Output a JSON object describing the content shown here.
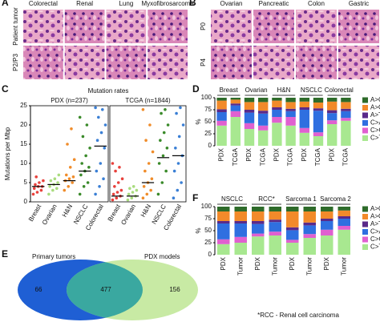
{
  "panel_a": {
    "label": "A",
    "columns": [
      "Colorectal",
      "Renal",
      "Lung",
      "Myxofibrosarcoma"
    ],
    "rows": [
      "Patient tumor",
      "P2/P3"
    ]
  },
  "panel_b": {
    "label": "B",
    "columns": [
      "Ovarian",
      "Pancreatic",
      "Colon",
      "Gastric"
    ],
    "rows": [
      "P0",
      "P4"
    ]
  },
  "chart_data": [
    {
      "type": "strip",
      "panel": "C",
      "title": "Mutation rates",
      "y_label": "Mutations per Mbp",
      "ylim": [
        0,
        25
      ],
      "yticks": [
        0,
        5,
        10,
        15,
        20,
        25
      ],
      "panels": [
        {
          "label": "PDX (n=237)",
          "series": [
            {
              "name": "Breast",
              "color": "#e8413c",
              "median": 4,
              "values": [
                2,
                2.5,
                3,
                3.5,
                4,
                4,
                4.5,
                5,
                5.5,
                6.5
              ]
            },
            {
              "name": "Ovarian",
              "color": "#a9dc7e",
              "median": 4.5,
              "values": [
                2,
                3,
                3.5,
                4,
                4.5,
                5,
                5.5,
                6,
                7
              ]
            },
            {
              "name": "H&N",
              "color": "#f08c2a",
              "median": 5.5,
              "values": [
                3,
                4,
                5,
                5.5,
                6,
                6.5,
                7,
                9,
                11,
                15,
                19
              ]
            },
            {
              "name": "NSCLC",
              "color": "#3a8a2a",
              "median": 8,
              "values": [
                2,
                4,
                5,
                7,
                8,
                9,
                10,
                12,
                14,
                17,
                20,
                22
              ]
            },
            {
              "name": "Colorectal",
              "color": "#3a7fd5",
              "median": 14.5,
              "values": [
                2,
                4,
                6,
                8,
                10,
                14,
                16,
                18,
                20,
                22,
                24,
                24.5
              ]
            }
          ]
        },
        {
          "label": "TCGA (n=1844)",
          "series": [
            {
              "name": "Breast",
              "color": "#e8413c",
              "median": 1.5,
              "values": [
                0.5,
                1,
                1.5,
                2,
                2.5,
                3,
                4,
                5,
                6,
                8,
                9,
                10
              ]
            },
            {
              "name": "Ovarian",
              "color": "#a9dc7e",
              "median": 1.5,
              "values": [
                0.5,
                1,
                1.5,
                2,
                2.5,
                3,
                3.5,
                4
              ]
            },
            {
              "name": "H&N",
              "color": "#f08c2a",
              "median": 5,
              "values": [
                1,
                2,
                3,
                4,
                5,
                6,
                8,
                10,
                13,
                16,
                20,
                24
              ]
            },
            {
              "name": "NSCLC",
              "color": "#3a8a2a",
              "median": 11.5,
              "values": [
                2,
                5,
                8,
                10,
                12,
                14,
                16,
                18,
                20,
                23,
                24
              ]
            },
            {
              "name": "Colorectal",
              "color": "#3a7fd5",
              "median": 12,
              "values": [
                1,
                3,
                5,
                8,
                10,
                12,
                14,
                17,
                20,
                23,
                24.5
              ]
            }
          ]
        }
      ]
    },
    {
      "type": "stacked_bar",
      "panel": "D",
      "y_label": "%",
      "ylim": [
        0,
        100
      ],
      "yticks": [
        0,
        25,
        50,
        75,
        100
      ],
      "groups": [
        "Breast",
        "Ovarian",
        "H&N",
        "NSCLC",
        "Colorectal"
      ],
      "categories": [
        "PDX",
        "TCGA",
        "PDX",
        "TCGA",
        "PDX",
        "TCGA",
        "PDX",
        "TCGA",
        "PDX",
        "TCGA"
      ],
      "series": [
        {
          "name": "C>T",
          "color": "#a8e890",
          "values": [
            42,
            60,
            35,
            32,
            48,
            42,
            27,
            20,
            45,
            52
          ]
        },
        {
          "name": "C>G",
          "color": "#e060d0",
          "values": [
            10,
            12,
            12,
            10,
            12,
            18,
            10,
            8,
            8,
            6
          ]
        },
        {
          "name": "C>A",
          "color": "#2f6fe0",
          "values": [
            18,
            12,
            22,
            25,
            15,
            12,
            38,
            45,
            15,
            14
          ]
        },
        {
          "name": "A>T",
          "color": "#5a2a8a",
          "values": [
            6,
            4,
            6,
            6,
            5,
            5,
            5,
            5,
            6,
            5
          ]
        },
        {
          "name": "A>G",
          "color": "#f28a2a",
          "values": [
            18,
            8,
            16,
            18,
            14,
            14,
            12,
            12,
            18,
            14
          ]
        },
        {
          "name": "A>C",
          "color": "#2e6b2a",
          "values": [
            6,
            4,
            9,
            9,
            6,
            9,
            8,
            10,
            8,
            9
          ]
        }
      ]
    },
    {
      "type": "venn",
      "panel": "E",
      "sets": [
        {
          "name": "Primary tumors",
          "only": 66,
          "color": "#1f5fd4"
        },
        {
          "name": "PDX models",
          "only": 156,
          "color": "#c8eaa4"
        }
      ],
      "overlap": 477,
      "overlap_color": "#3aa8a0"
    },
    {
      "type": "stacked_bar",
      "panel": "F",
      "y_label": "%",
      "ylim": [
        0,
        100
      ],
      "yticks": [
        0,
        25,
        50,
        75,
        100
      ],
      "groups": [
        "NSCLC",
        "RCC*",
        "Sarcoma 1",
        "Sarcoma 2"
      ],
      "categories": [
        "PDX",
        "Tumor",
        "PDX",
        "Tumor",
        "PDX",
        "Tumor",
        "PDX",
        "Tumor"
      ],
      "note": "*RCC - Renal cell carcinoma",
      "series": [
        {
          "name": "C>T",
          "color": "#a8e890",
          "values": [
            22,
            25,
            38,
            40,
            25,
            35,
            40,
            52
          ]
        },
        {
          "name": "C>G",
          "color": "#e060d0",
          "values": [
            10,
            12,
            6,
            8,
            6,
            8,
            12,
            8
          ]
        },
        {
          "name": "C>A",
          "color": "#2f6fe0",
          "values": [
            33,
            28,
            20,
            20,
            20,
            18,
            18,
            15
          ]
        },
        {
          "name": "A>T",
          "color": "#5a2a8a",
          "values": [
            5,
            5,
            6,
            5,
            6,
            6,
            5,
            5
          ]
        },
        {
          "name": "A>G",
          "color": "#f28a2a",
          "values": [
            20,
            20,
            20,
            17,
            33,
            23,
            15,
            12
          ]
        },
        {
          "name": "A>C",
          "color": "#2e6b2a",
          "values": [
            10,
            10,
            10,
            10,
            10,
            10,
            10,
            8
          ]
        }
      ]
    }
  ]
}
